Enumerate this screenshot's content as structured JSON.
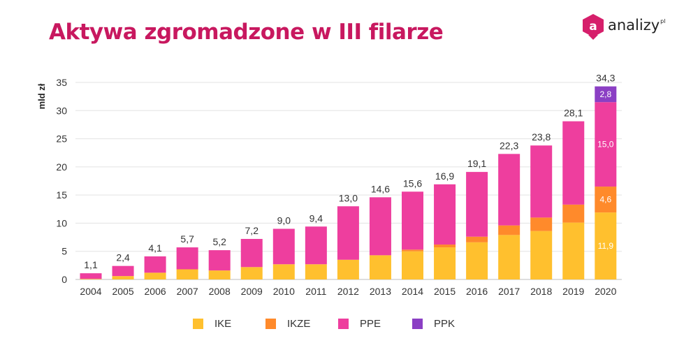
{
  "title": "Aktywa zgromadzone w III filarze",
  "logo": {
    "text": "analizy",
    "sup": "pl",
    "mark_letter": "a",
    "mark_color": "#d61f6b"
  },
  "colors": {
    "IKE": "#ffc02e",
    "IKZE": "#ff8a2b",
    "PPE": "#ee3e9e",
    "PPK": "#8b3fc4",
    "title": "#c8185f"
  },
  "chart_data": {
    "type": "bar",
    "stacked": true,
    "ylabel": "mld zł",
    "xlabel": "",
    "ylim": [
      0,
      35
    ],
    "yticks": [
      0,
      5,
      10,
      15,
      20,
      25,
      30,
      35
    ],
    "grid": true,
    "legend": "bottom",
    "categories": [
      "2004",
      "2005",
      "2006",
      "2007",
      "2008",
      "2009",
      "2010",
      "2011",
      "2012",
      "2013",
      "2014",
      "2015",
      "2016",
      "2017",
      "2018",
      "2019",
      "2020"
    ],
    "totals": [
      "1,1",
      "2,4",
      "4,1",
      "5,7",
      "5,2",
      "7,2",
      "9,0",
      "9,4",
      "13,0",
      "14,6",
      "15,6",
      "16,9",
      "19,1",
      "22,3",
      "23,8",
      "28,1",
      "34,3"
    ],
    "series": [
      {
        "name": "IKE",
        "values": [
          0.1,
          0.6,
          1.2,
          1.8,
          1.6,
          2.2,
          2.7,
          2.7,
          3.5,
          4.3,
          5.0,
          5.7,
          6.6,
          7.9,
          8.6,
          10.1,
          11.9
        ]
      },
      {
        "name": "IKZE",
        "values": [
          0,
          0,
          0,
          0,
          0,
          0,
          0,
          0,
          0,
          0,
          0.3,
          0.5,
          1.0,
          1.7,
          2.4,
          3.2,
          4.6
        ]
      },
      {
        "name": "PPE",
        "values": [
          1.0,
          1.8,
          2.9,
          3.9,
          3.6,
          5.0,
          6.3,
          6.7,
          9.5,
          10.3,
          10.3,
          10.7,
          11.5,
          12.7,
          12.8,
          14.8,
          15.0
        ]
      },
      {
        "name": "PPK",
        "values": [
          0,
          0,
          0,
          0,
          0,
          0,
          0,
          0,
          0,
          0,
          0,
          0,
          0,
          0,
          0,
          0,
          2.8
        ]
      }
    ],
    "segment_labels": [
      {
        "category": "2020",
        "series": "IKE",
        "label": "11,9"
      },
      {
        "category": "2020",
        "series": "IKZE",
        "label": "4,6"
      },
      {
        "category": "2020",
        "series": "PPE",
        "label": "15,0"
      },
      {
        "category": "2020",
        "series": "PPK",
        "label": "2,8"
      }
    ]
  }
}
